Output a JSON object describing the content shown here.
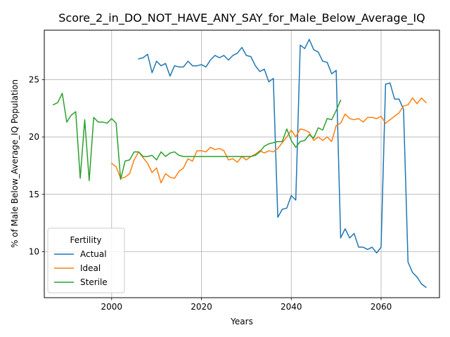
{
  "chart_data": {
    "type": "line",
    "title": "Score_2_in_DO_NOT_HAVE_ANY_SAY_for_Male_Below_Average_IQ",
    "xlabel": "Years",
    "ylabel": "% of Male Below_Average_IQ Population",
    "xlim": [
      1985,
      2073
    ],
    "ylim": [
      6.0,
      29.3
    ],
    "xticks": [
      2000,
      2020,
      2040,
      2060
    ],
    "yticks": [
      10,
      15,
      20,
      25
    ],
    "grid": true,
    "legend": {
      "title": "Fertility",
      "placement": "lower-left",
      "entries": [
        "Actual",
        "Ideal",
        "Sterile"
      ]
    },
    "series": [
      {
        "name": "Actual",
        "color": "#1f77b4",
        "points": [
          [
            2006,
            26.8
          ],
          [
            2007,
            26.9
          ],
          [
            2008,
            27.2
          ],
          [
            2009,
            25.6
          ],
          [
            2010,
            26.6
          ],
          [
            2011,
            26.2
          ],
          [
            2012,
            26.4
          ],
          [
            2013,
            25.3
          ],
          [
            2014,
            26.2
          ],
          [
            2015,
            26.1
          ],
          [
            2016,
            26.1
          ],
          [
            2017,
            26.6
          ],
          [
            2018,
            26.2
          ],
          [
            2019,
            26.2
          ],
          [
            2020,
            26.3
          ],
          [
            2021,
            26.1
          ],
          [
            2022,
            26.7
          ],
          [
            2023,
            27.1
          ],
          [
            2024,
            26.9
          ],
          [
            2025,
            27.1
          ],
          [
            2026,
            26.7
          ],
          [
            2027,
            27.1
          ],
          [
            2028,
            27.3
          ],
          [
            2029,
            27.8
          ],
          [
            2030,
            27.1
          ],
          [
            2031,
            27.0
          ],
          [
            2032,
            26.2
          ],
          [
            2033,
            25.7
          ],
          [
            2034,
            25.9
          ],
          [
            2035,
            24.8
          ],
          [
            2036,
            25.1
          ],
          [
            2037,
            13.0
          ],
          [
            2038,
            13.7
          ],
          [
            2039,
            13.8
          ],
          [
            2040,
            14.9
          ],
          [
            2041,
            14.5
          ],
          [
            2042,
            28.0
          ],
          [
            2043,
            27.7
          ],
          [
            2044,
            28.5
          ],
          [
            2045,
            27.6
          ],
          [
            2046,
            27.4
          ],
          [
            2047,
            26.6
          ],
          [
            2048,
            26.5
          ],
          [
            2049,
            25.5
          ],
          [
            2050,
            25.8
          ],
          [
            2051,
            11.2
          ],
          [
            2052,
            12.0
          ],
          [
            2053,
            11.2
          ],
          [
            2054,
            11.6
          ],
          [
            2055,
            10.4
          ],
          [
            2056,
            10.4
          ],
          [
            2057,
            10.2
          ],
          [
            2058,
            10.4
          ],
          [
            2059,
            9.9
          ],
          [
            2060,
            10.4
          ],
          [
            2061,
            24.6
          ],
          [
            2062,
            24.7
          ],
          [
            2063,
            23.3
          ],
          [
            2064,
            23.3
          ],
          [
            2065,
            22.4
          ],
          [
            2066,
            9.1
          ],
          [
            2067,
            8.2
          ],
          [
            2068,
            7.8
          ],
          [
            2069,
            7.2
          ],
          [
            2070,
            6.9
          ]
        ]
      },
      {
        "name": "Ideal",
        "color": "#ff7f0e",
        "points": [
          [
            2000,
            17.7
          ],
          [
            2001,
            17.4
          ],
          [
            2002,
            16.4
          ],
          [
            2003,
            16.5
          ],
          [
            2004,
            16.8
          ],
          [
            2005,
            18.0
          ],
          [
            2006,
            18.7
          ],
          [
            2007,
            18.2
          ],
          [
            2008,
            17.7
          ],
          [
            2009,
            16.9
          ],
          [
            2010,
            17.3
          ],
          [
            2011,
            16.0
          ],
          [
            2012,
            16.8
          ],
          [
            2013,
            16.5
          ],
          [
            2014,
            16.4
          ],
          [
            2015,
            17.0
          ],
          [
            2016,
            17.3
          ],
          [
            2017,
            18.1
          ],
          [
            2018,
            17.9
          ],
          [
            2019,
            18.8
          ],
          [
            2020,
            18.8
          ],
          [
            2021,
            18.7
          ],
          [
            2022,
            19.1
          ],
          [
            2023,
            18.9
          ],
          [
            2024,
            19.0
          ],
          [
            2025,
            18.8
          ],
          [
            2026,
            18.0
          ],
          [
            2027,
            18.1
          ],
          [
            2028,
            17.8
          ],
          [
            2029,
            18.3
          ],
          [
            2030,
            18.0
          ],
          [
            2031,
            18.3
          ],
          [
            2032,
            18.5
          ],
          [
            2033,
            18.8
          ],
          [
            2034,
            18.6
          ],
          [
            2035,
            18.8
          ],
          [
            2036,
            18.7
          ],
          [
            2037,
            19.0
          ],
          [
            2038,
            19.5
          ],
          [
            2039,
            20.0
          ],
          [
            2040,
            20.6
          ],
          [
            2041,
            20.0
          ],
          [
            2042,
            20.7
          ],
          [
            2043,
            20.6
          ],
          [
            2044,
            20.4
          ],
          [
            2045,
            19.7
          ],
          [
            2046,
            20.0
          ],
          [
            2047,
            19.7
          ],
          [
            2048,
            20.0
          ],
          [
            2049,
            19.6
          ],
          [
            2050,
            21.0
          ],
          [
            2051,
            21.2
          ],
          [
            2052,
            22.0
          ],
          [
            2053,
            21.6
          ],
          [
            2054,
            21.5
          ],
          [
            2055,
            21.6
          ],
          [
            2056,
            21.3
          ],
          [
            2057,
            21.7
          ],
          [
            2058,
            21.7
          ],
          [
            2059,
            21.6
          ],
          [
            2060,
            21.8
          ],
          [
            2061,
            21.2
          ],
          [
            2062,
            21.5
          ],
          [
            2063,
            21.8
          ],
          [
            2064,
            22.1
          ],
          [
            2065,
            22.7
          ],
          [
            2066,
            22.8
          ],
          [
            2067,
            23.4
          ],
          [
            2068,
            22.9
          ],
          [
            2069,
            23.4
          ],
          [
            2070,
            23.0
          ]
        ]
      },
      {
        "name": "Sterile",
        "color": "#2ca02c",
        "points": [
          [
            1987,
            22.8
          ],
          [
            1988,
            23.0
          ],
          [
            1989,
            23.8
          ],
          [
            1990,
            21.3
          ],
          [
            1991,
            21.9
          ],
          [
            1992,
            22.2
          ],
          [
            1993,
            16.4
          ],
          [
            1994,
            21.5
          ],
          [
            1995,
            16.2
          ],
          [
            1996,
            21.7
          ],
          [
            1997,
            21.3
          ],
          [
            1998,
            21.3
          ],
          [
            1999,
            21.2
          ],
          [
            2000,
            21.6
          ],
          [
            2001,
            21.2
          ],
          [
            2002,
            16.3
          ],
          [
            2003,
            17.9
          ],
          [
            2004,
            18.0
          ],
          [
            2005,
            18.7
          ],
          [
            2006,
            18.7
          ],
          [
            2007,
            18.3
          ],
          [
            2008,
            18.3
          ],
          [
            2009,
            18.4
          ],
          [
            2010,
            18.0
          ],
          [
            2011,
            18.7
          ],
          [
            2012,
            18.3
          ],
          [
            2013,
            18.6
          ],
          [
            2014,
            18.7
          ],
          [
            2015,
            18.4
          ],
          [
            2016,
            18.3
          ],
          [
            2017,
            18.3
          ],
          [
            2018,
            18.3
          ],
          [
            2019,
            18.3
          ],
          [
            2020,
            18.3
          ],
          [
            2021,
            18.3
          ],
          [
            2022,
            18.3
          ],
          [
            2023,
            18.3
          ],
          [
            2024,
            18.3
          ],
          [
            2025,
            18.3
          ],
          [
            2026,
            18.3
          ],
          [
            2027,
            18.3
          ],
          [
            2028,
            18.3
          ],
          [
            2029,
            18.3
          ],
          [
            2030,
            18.3
          ],
          [
            2031,
            18.3
          ],
          [
            2032,
            18.4
          ],
          [
            2033,
            18.7
          ],
          [
            2034,
            19.2
          ],
          [
            2035,
            19.4
          ],
          [
            2036,
            19.5
          ],
          [
            2037,
            19.6
          ],
          [
            2038,
            19.6
          ],
          [
            2039,
            20.7
          ],
          [
            2040,
            19.7
          ],
          [
            2041,
            19.1
          ],
          [
            2042,
            19.6
          ],
          [
            2043,
            19.7
          ],
          [
            2044,
            20.2
          ],
          [
            2045,
            19.9
          ],
          [
            2046,
            20.8
          ],
          [
            2047,
            20.6
          ],
          [
            2048,
            21.6
          ],
          [
            2049,
            21.5
          ],
          [
            2050,
            22.3
          ],
          [
            2051,
            23.2
          ]
        ]
      }
    ]
  }
}
